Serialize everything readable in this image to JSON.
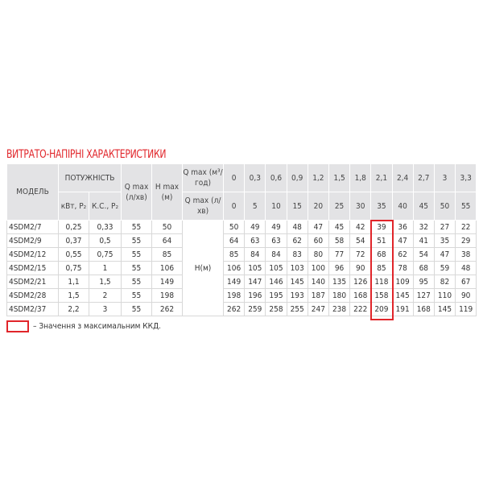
{
  "title": "ВИТРАТО-НАПІРНІ ХАРАКТЕРИСТИКИ",
  "headers": {
    "model": "МОДЕЛЬ",
    "power": "ПОТУЖНІСТЬ",
    "kw": "кВт, P₂",
    "hp": "К.С., P₂",
    "qmax": "Q max (л/хв)",
    "hmax": "H max (м)",
    "q_m3": "Q max (м³/год)",
    "q_lmin": "Q max (л/хв)",
    "h_label": "H(м)"
  },
  "q_m3_values": [
    "0",
    "0,3",
    "0,6",
    "0,9",
    "1,2",
    "1,5",
    "1,8",
    "2,1",
    "2,4",
    "2,7",
    "3",
    "3,3"
  ],
  "q_lmin_values": [
    "0",
    "5",
    "10",
    "15",
    "20",
    "25",
    "30",
    "35",
    "40",
    "45",
    "50",
    "55"
  ],
  "rows": [
    {
      "model": "4SDM2/7",
      "kw": "0,25",
      "hp": "0,33",
      "qmax": "55",
      "hmax": "50",
      "h": [
        "50",
        "49",
        "49",
        "48",
        "47",
        "45",
        "42",
        "39",
        "36",
        "32",
        "27",
        "22"
      ]
    },
    {
      "model": "4SDM2/9",
      "kw": "0,37",
      "hp": "0,5",
      "qmax": "55",
      "hmax": "64",
      "h": [
        "64",
        "63",
        "63",
        "62",
        "60",
        "58",
        "54",
        "51",
        "47",
        "41",
        "35",
        "29"
      ]
    },
    {
      "model": "4SDM2/12",
      "kw": "0,55",
      "hp": "0,75",
      "qmax": "55",
      "hmax": "85",
      "h": [
        "85",
        "84",
        "84",
        "83",
        "80",
        "77",
        "72",
        "68",
        "62",
        "54",
        "47",
        "38"
      ]
    },
    {
      "model": "4SDM2/15",
      "kw": "0,75",
      "hp": "1",
      "qmax": "55",
      "hmax": "106",
      "h": [
        "106",
        "105",
        "105",
        "103",
        "100",
        "96",
        "90",
        "85",
        "78",
        "68",
        "59",
        "48"
      ]
    },
    {
      "model": "4SDM2/21",
      "kw": "1,1",
      "hp": "1,5",
      "qmax": "55",
      "hmax": "149",
      "h": [
        "149",
        "147",
        "146",
        "145",
        "140",
        "135",
        "126",
        "118",
        "109",
        "95",
        "82",
        "67"
      ]
    },
    {
      "model": "4SDM2/28",
      "kw": "1,5",
      "hp": "2",
      "qmax": "55",
      "hmax": "198",
      "h": [
        "198",
        "196",
        "195",
        "193",
        "187",
        "180",
        "168",
        "158",
        "145",
        "127",
        "110",
        "90"
      ]
    },
    {
      "model": "4SDM2/37",
      "kw": "2,2",
      "hp": "3",
      "qmax": "55",
      "hmax": "262",
      "h": [
        "262",
        "259",
        "258",
        "255",
        "247",
        "238",
        "222",
        "209",
        "191",
        "168",
        "145",
        "119"
      ]
    }
  ],
  "legend": "– Значення з максимальним ККД.",
  "colors": {
    "accent": "#e1252a",
    "header_bg": "#e3e3e5"
  }
}
